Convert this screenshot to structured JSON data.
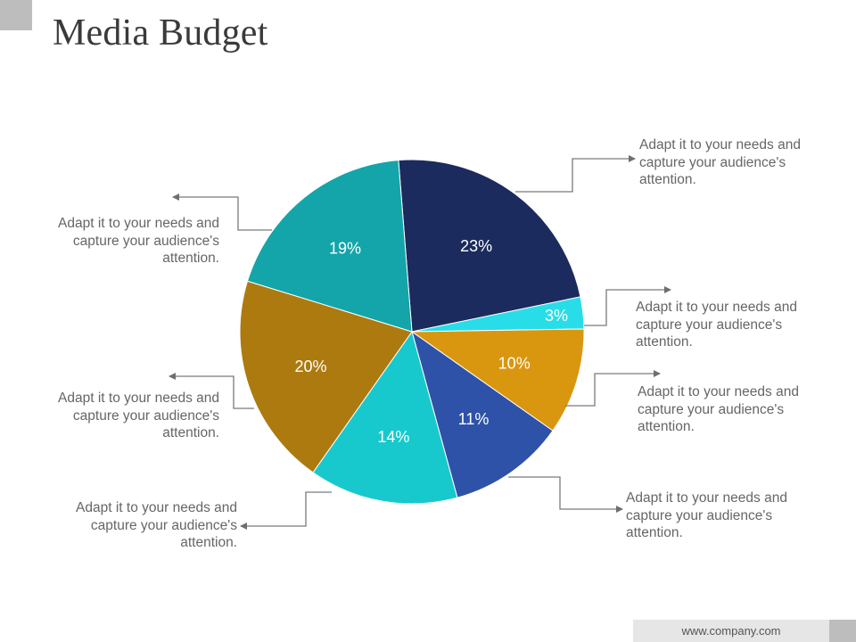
{
  "title": "Media Budget",
  "footer": {
    "website": "www.company.com"
  },
  "chart_data": {
    "type": "pie",
    "title": "Media Budget",
    "start_angle_deg": -4.5,
    "slices": [
      {
        "label": "23%",
        "value": 23,
        "color": "#1c2b5e"
      },
      {
        "label": "3%",
        "value": 3,
        "color": "#29dde8"
      },
      {
        "label": "10%",
        "value": 10,
        "color": "#d9960f"
      },
      {
        "label": "11%",
        "value": 11,
        "color": "#2e52a8"
      },
      {
        "label": "14%",
        "value": 14,
        "color": "#17c9cc"
      },
      {
        "label": "20%",
        "value": 20,
        "color": "#ac7a0f"
      },
      {
        "label": "19%",
        "value": 19,
        "color": "#13a5a9"
      }
    ],
    "callouts": [
      {
        "text": "Adapt it to your needs and capture your audience's attention."
      },
      {
        "text": "Adapt it to your needs and capture your audience's attention."
      },
      {
        "text": "Adapt it to your needs and capture your audience's attention."
      },
      {
        "text": "Adapt it to your needs and capture your audience's attention."
      },
      {
        "text": "Adapt it to your needs and capture your audience's attention."
      },
      {
        "text": "Adapt it to your needs and capture your audience's attention."
      },
      {
        "text": "Adapt it to your needs and capture your audience's attention."
      }
    ]
  }
}
